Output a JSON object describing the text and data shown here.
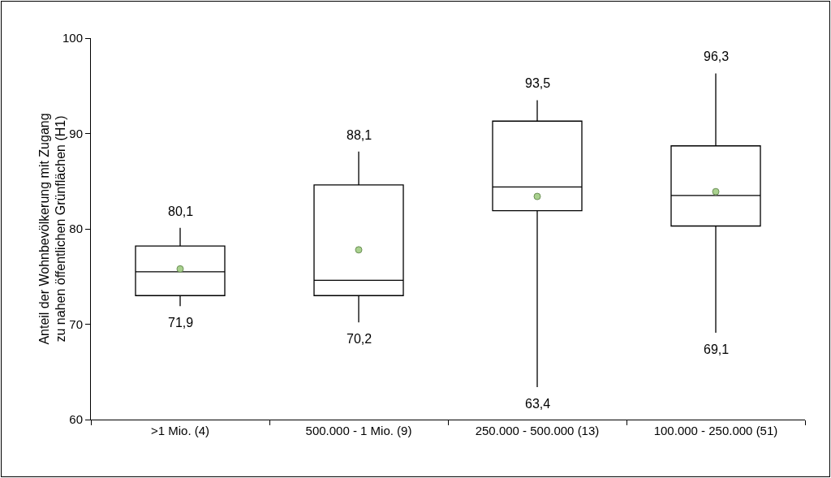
{
  "chart_data": {
    "type": "box",
    "ylabel": "Anteil der Wohnbevölkerung mit Zugang zu nahen öffentlichen Grünflächen (H1)",
    "categories": [
      ">1 Mio. (4)",
      "500.000 - 1 Mio. (9)",
      "250.000 - 500.000 (13)",
      "100.000 - 250.000 (51)"
    ],
    "boxes": [
      {
        "low": 71.9,
        "q1": 73.0,
        "median": 75.5,
        "q3": 78.2,
        "high": 80.1,
        "mean": 75.8
      },
      {
        "low": 70.2,
        "q1": 73.0,
        "median": 74.6,
        "q3": 84.6,
        "high": 88.1,
        "mean": 77.8
      },
      {
        "low": 63.4,
        "q1": 81.9,
        "median": 84.4,
        "q3": 91.3,
        "high": 93.5,
        "mean": 83.4
      },
      {
        "low": 69.1,
        "q1": 80.3,
        "median": 83.5,
        "q3": 88.7,
        "high": 96.3,
        "mean": 83.9
      }
    ],
    "ylim": [
      60,
      100
    ],
    "yticks": [
      60,
      70,
      80,
      90,
      100
    ],
    "annotations": [
      {
        "text": "80,1",
        "x": ">1 Mio. (4)",
        "y": 80.1
      },
      {
        "text": "71,9",
        "x": ">1 Mio. (4)",
        "y": 71.9
      },
      {
        "text": "88,1",
        "x": "500.000 - 1 Mio. (9)",
        "y": 88.1
      },
      {
        "text": "70,2",
        "x": "500.000 - 1 Mio. (9)",
        "y": 70.2
      },
      {
        "text": "93,5",
        "x": "250.000 - 500.000 (13)",
        "y": 93.5
      },
      {
        "text": "63,4",
        "x": "250.000 - 500.000 (13)",
        "y": 63.4
      },
      {
        "text": "96,3",
        "x": "100.000 - 250.000 (51)",
        "y": 96.3
      },
      {
        "text": "69,1",
        "x": "100.000 - 250.000 (51)",
        "y": 69.1
      }
    ]
  }
}
